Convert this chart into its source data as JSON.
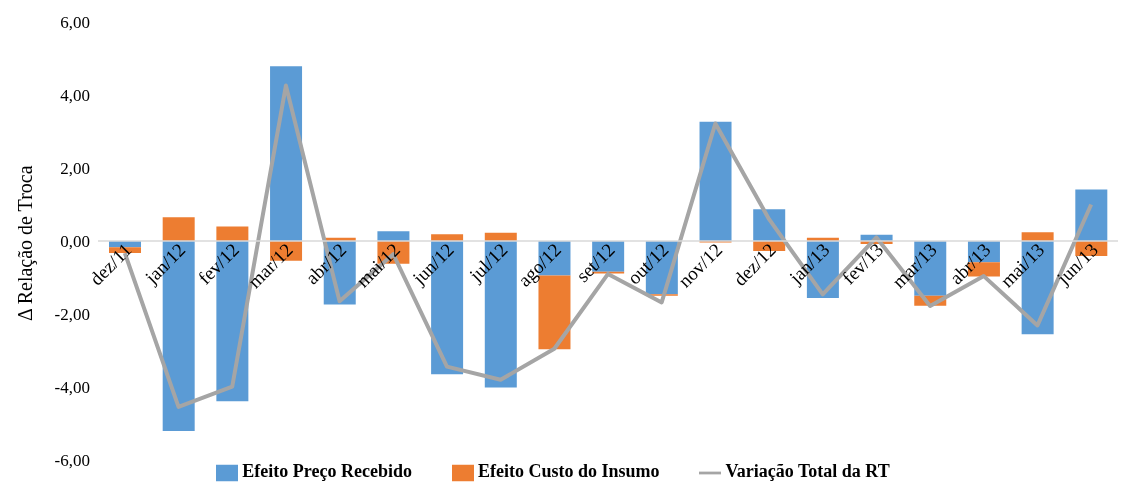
{
  "chart_data": {
    "type": "bar",
    "stacked": true,
    "ylabel": "Δ Relação de Troca",
    "categories": [
      "dez/11",
      "jan/12",
      "fev/12",
      "mar/12",
      "abr/12",
      "mai/12",
      "jun/12",
      "jul/12",
      "ago/12",
      "set/12",
      "out/12",
      "nov/12",
      "dez/12",
      "jan/13",
      "fev/13",
      "mar/13",
      "abr/13",
      "mai/13",
      "jun/13"
    ],
    "series": [
      {
        "name": "Efeito Preço Recebido",
        "type": "bar",
        "color": "#5b9bd5",
        "values": [
          -0.17,
          -5.2,
          -4.39,
          4.79,
          -1.74,
          0.27,
          -3.65,
          -4.01,
          -0.94,
          -0.84,
          -1.46,
          3.27,
          0.87,
          -1.56,
          0.17,
          -1.5,
          -0.58,
          -2.55,
          1.41
        ]
      },
      {
        "name": "Efeito Custo do Insumo",
        "type": "bar",
        "color": "#ed7d31",
        "values": [
          -0.16,
          0.65,
          0.4,
          -0.54,
          0.09,
          -0.62,
          0.19,
          0.23,
          -2.02,
          -0.05,
          -0.04,
          -0.04,
          -0.27,
          0.09,
          -0.08,
          -0.27,
          -0.39,
          0.24,
          -0.41
        ]
      },
      {
        "name": "Variação Total da RT",
        "type": "line",
        "color": "#a5a5a5",
        "values": [
          -0.33,
          -4.54,
          -3.99,
          4.26,
          -1.65,
          -0.36,
          -3.44,
          -3.8,
          -2.95,
          -0.9,
          -1.68,
          3.22,
          0.6,
          -1.46,
          0.1,
          -1.78,
          -0.96,
          -2.31,
          1.0
        ]
      }
    ],
    "ylim": [
      -6,
      6
    ],
    "yticks": [
      {
        "value": -6,
        "label": "-6,00"
      },
      {
        "value": -4,
        "label": "-4,00"
      },
      {
        "value": -2,
        "label": "-2,00"
      },
      {
        "value": 0,
        "label": "0,00"
      },
      {
        "value": 2,
        "label": "2,00"
      },
      {
        "value": 4,
        "label": "4,00"
      },
      {
        "value": 6,
        "label": "6,00"
      }
    ],
    "grid": false,
    "legend": "bottom",
    "marker": "none",
    "line_style": "solid"
  }
}
